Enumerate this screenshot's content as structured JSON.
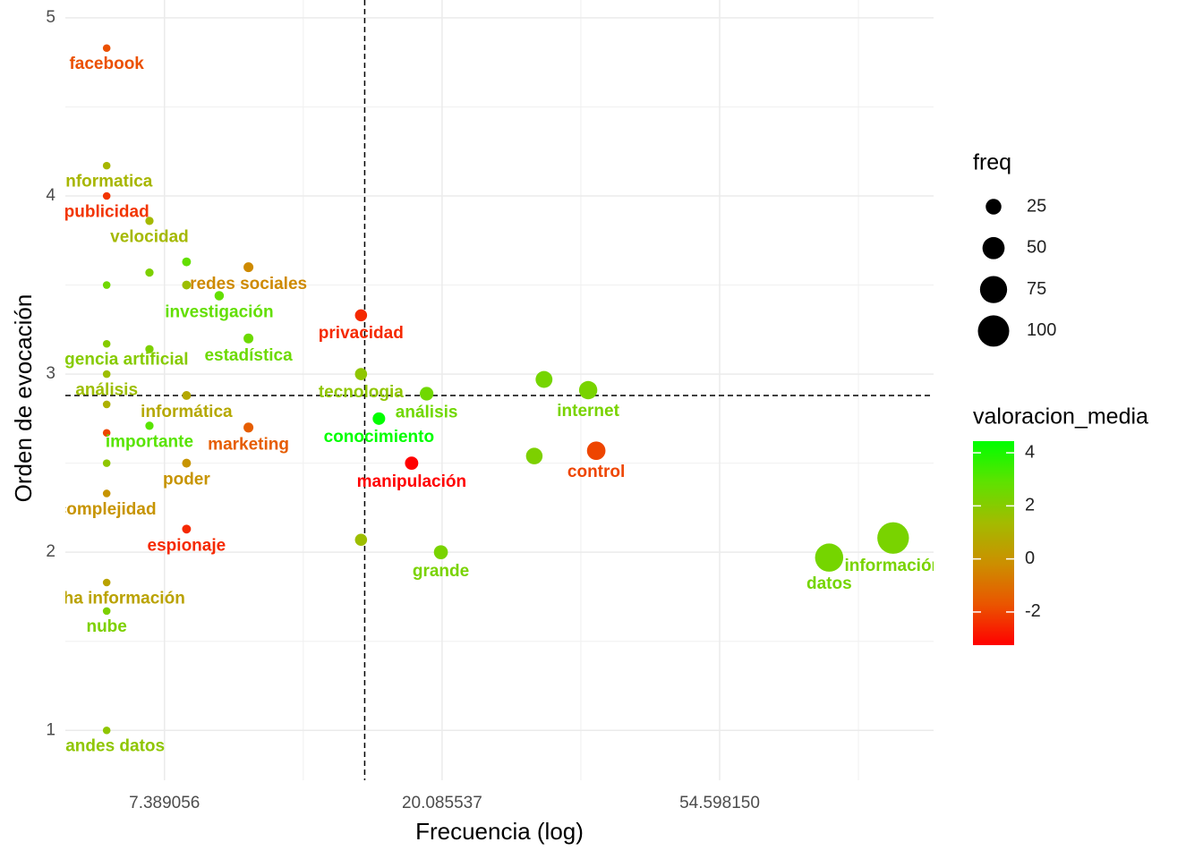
{
  "chart_data": {
    "type": "scatter",
    "x_label": "Frecuencia (log)",
    "y_label": "Orden de evocación",
    "x_log": true,
    "x": [
      6,
      6,
      6,
      6,
      6,
      6,
      6,
      6,
      6,
      6,
      6,
      6,
      6,
      7,
      7,
      7,
      7,
      8,
      8,
      8,
      8,
      8,
      9,
      10,
      10,
      10,
      15,
      15,
      15,
      16,
      18,
      19,
      20,
      28,
      29,
      34,
      35,
      81,
      102
    ],
    "y": [
      4.83,
      4.17,
      4.0,
      3.5,
      3.17,
      3.0,
      2.83,
      2.67,
      2.5,
      2.33,
      1.83,
      1.67,
      1.0,
      3.86,
      3.57,
      3.14,
      2.71,
      3.63,
      3.5,
      2.88,
      2.5,
      2.13,
      3.44,
      3.6,
      3.2,
      2.7,
      3.33,
      3.0,
      2.07,
      2.75,
      2.5,
      2.89,
      2.0,
      2.54,
      2.97,
      2.91,
      2.57,
      1.97,
      2.08
    ],
    "color_values": [
      -1.8,
      1.2,
      -2.3,
      2.5,
      2.0,
      1.5,
      1.0,
      -2.0,
      1.8,
      0.0,
      0.5,
      2.2,
      1.8,
      1.3,
      2.2,
      2.2,
      3.0,
      2.8,
      1.5,
      0.7,
      0.0,
      -2.5,
      2.8,
      -0.3,
      2.6,
      -1.5,
      -2.5,
      1.8,
      1.5,
      4.4,
      -3.25,
      2.5,
      2.3,
      2.2,
      2.4,
      2.3,
      -2.0,
      2.4,
      2.3
    ],
    "labels": [
      "facebook",
      "informatica",
      "publicidad",
      null,
      "inteligencia artificial",
      "análisis",
      null,
      null,
      null,
      "complejidad",
      "mucha información",
      "nube",
      "grandes datos",
      "velocidad",
      null,
      null,
      "importante",
      null,
      null,
      "informática",
      "poder",
      "espionaje",
      "investigación",
      "redes sociales",
      "estadística",
      "marketing",
      "privacidad",
      "tecnologia",
      null,
      "conocimiento",
      "manipulación",
      "análisis",
      "grande",
      null,
      null,
      "internet",
      "control",
      "datos",
      "información"
    ],
    "xlim": [
      5.17,
      118
    ],
    "ylim": [
      0.72,
      5.1
    ],
    "xticks": [
      7.389056,
      20.085537,
      {
        "value": 54.59815,
        "label": "54.598150"
      }
    ],
    "xminor": [
      12.182494,
      33.115452,
      90.017131
    ],
    "yticks": [
      1,
      2,
      3,
      4,
      5
    ],
    "yminor": [
      1.5,
      2.5,
      3.5,
      4.5
    ],
    "vline": 15.2,
    "hline": 2.88,
    "size_title": "freq",
    "size_ticks": [
      25,
      50,
      75,
      100
    ],
    "color_title": "valoracion_media",
    "color_lim": [
      -3.25,
      4.44
    ],
    "color_ticks": [
      -2,
      0,
      2,
      4
    ],
    "colors": [
      "#FF0000",
      "#EA5500",
      "#CC8F00",
      "#A3BB00",
      "#5EE200",
      "#00FF00"
    ],
    "grid": true
  }
}
